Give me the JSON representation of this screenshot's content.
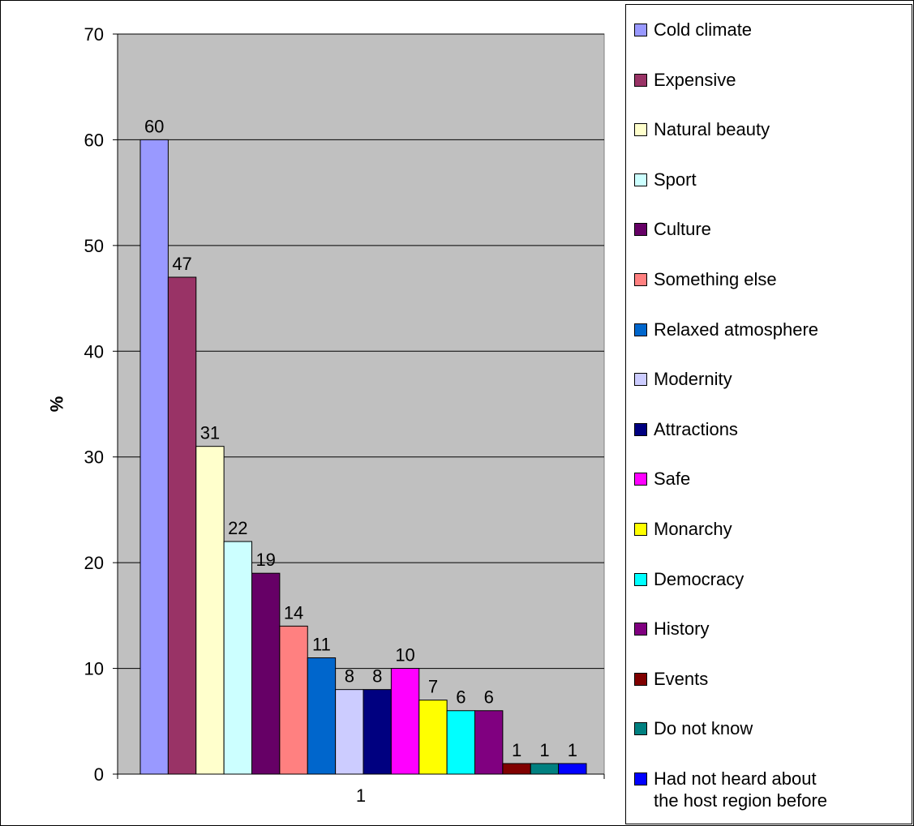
{
  "chart_data": {
    "type": "bar",
    "categories": [
      "1"
    ],
    "xlabel": "",
    "ylabel": "%",
    "ylim": [
      0,
      70
    ],
    "yticks": [
      0,
      10,
      20,
      30,
      40,
      50,
      60,
      70
    ],
    "grid": true,
    "legend_position": "right",
    "plot_background": "#c0c0c0",
    "series": [
      {
        "name": "Cold climate",
        "value": 60,
        "color": "#9999ff"
      },
      {
        "name": "Expensive",
        "value": 47,
        "color": "#993366"
      },
      {
        "name": "Natural beauty",
        "value": 31,
        "color": "#ffffcc"
      },
      {
        "name": "Sport",
        "value": 22,
        "color": "#ccffff"
      },
      {
        "name": "Culture",
        "value": 19,
        "color": "#660066"
      },
      {
        "name": "Something else",
        "value": 14,
        "color": "#ff8080"
      },
      {
        "name": "Relaxed atmosphere",
        "value": 11,
        "color": "#0066cc"
      },
      {
        "name": "Modernity",
        "value": 8,
        "color": "#ccccff"
      },
      {
        "name": "Attractions",
        "value": 8,
        "color": "#000080"
      },
      {
        "name": "Safe",
        "value": 10,
        "color": "#ff00ff"
      },
      {
        "name": "Monarchy",
        "value": 7,
        "color": "#ffff00"
      },
      {
        "name": "Democracy",
        "value": 6,
        "color": "#00ffff"
      },
      {
        "name": "History",
        "value": 6,
        "color": "#800080"
      },
      {
        "name": "Events",
        "value": 1,
        "color": "#800000"
      },
      {
        "name": "Do not know",
        "value": 1,
        "color": "#008080"
      },
      {
        "name": "Had not heard about\nthe host region before",
        "value": 1,
        "color": "#0000ff"
      }
    ]
  }
}
